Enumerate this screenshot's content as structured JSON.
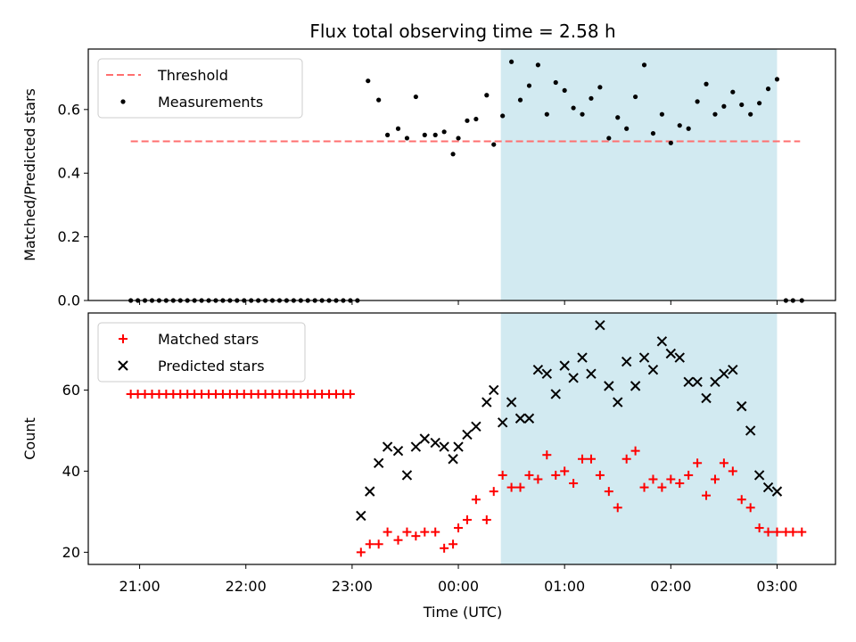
{
  "figure": {
    "title": "Flux total observing time = 2.58 h",
    "xlabel": "Time (UTC)",
    "x_tick_labels": [
      "21:00",
      "22:00",
      "23:00",
      "00:00",
      "01:00",
      "02:00",
      "03:00"
    ],
    "shaded_span": [
      "00:24",
      "03:00"
    ],
    "shade_color": "#add8e6",
    "xlim": [
      "20:31",
      "03:33"
    ]
  },
  "chart_data": [
    {
      "type": "scatter",
      "ylabel": "Matched/Predicted stars",
      "ylim": [
        0,
        0.79
      ],
      "y_ticks": [
        "0.0",
        "0.2",
        "0.4",
        "0.6"
      ],
      "legend_position": "top-left",
      "series": [
        {
          "name": "Threshold",
          "style": "dashed-line",
          "color": "#ff6f6f",
          "x": [
            "20:55",
            "03:13"
          ],
          "y": [
            0.5,
            0.5
          ]
        },
        {
          "name": "Measurements",
          "style": "dot",
          "color": "#000000",
          "x": [
            "20:55",
            "20:59",
            "21:03",
            "21:07",
            "21:11",
            "21:15",
            "21:19",
            "21:23",
            "21:27",
            "21:31",
            "21:35",
            "21:39",
            "21:43",
            "21:47",
            "21:51",
            "21:55",
            "21:59",
            "22:03",
            "22:07",
            "22:11",
            "22:15",
            "22:19",
            "22:23",
            "22:27",
            "22:31",
            "22:35",
            "22:39",
            "22:43",
            "22:47",
            "22:51",
            "22:55",
            "22:59",
            "23:03",
            "23:09",
            "23:15",
            "23:20",
            "23:26",
            "23:31",
            "23:36",
            "23:41",
            "23:47",
            "23:52",
            "23:57",
            "00:00",
            "00:05",
            "00:10",
            "00:16",
            "00:20",
            "00:25",
            "00:30",
            "00:35",
            "00:40",
            "00:45",
            "00:50",
            "00:55",
            "01:00",
            "01:05",
            "01:10",
            "01:15",
            "01:20",
            "01:25",
            "01:30",
            "01:35",
            "01:40",
            "01:45",
            "01:50",
            "01:55",
            "02:00",
            "02:05",
            "02:10",
            "02:15",
            "02:20",
            "02:25",
            "02:30",
            "02:35",
            "02:40",
            "02:45",
            "02:50",
            "02:55",
            "03:00",
            "03:05",
            "03:09",
            "03:14"
          ],
          "y": [
            0,
            0,
            0,
            0,
            0,
            0,
            0,
            0,
            0,
            0,
            0,
            0,
            0,
            0,
            0,
            0,
            0,
            0,
            0,
            0,
            0,
            0,
            0,
            0,
            0,
            0,
            0,
            0,
            0,
            0,
            0,
            0,
            0,
            0.69,
            0.63,
            0.52,
            0.54,
            0.51,
            0.64,
            0.52,
            0.52,
            0.53,
            0.46,
            0.51,
            0.565,
            0.57,
            0.645,
            0.49,
            0.58,
            0.75,
            0.63,
            0.675,
            0.74,
            0.585,
            0.685,
            0.66,
            0.605,
            0.585,
            0.635,
            0.67,
            0.51,
            0.575,
            0.54,
            0.64,
            0.74,
            0.525,
            0.585,
            0.495,
            0.55,
            0.54,
            0.625,
            0.68,
            0.585,
            0.61,
            0.655,
            0.615,
            0.585,
            0.62,
            0.665,
            0.695,
            0,
            0,
            0
          ]
        }
      ]
    },
    {
      "type": "scatter",
      "ylabel": "Count",
      "ylim": [
        17,
        79
      ],
      "y_ticks": [
        "20",
        "40",
        "60"
      ],
      "legend_position": "top-left",
      "series": [
        {
          "name": "Matched stars",
          "marker": "plus",
          "color": "#ff0000",
          "x": [
            "20:55",
            "20:59",
            "21:03",
            "21:07",
            "21:11",
            "21:15",
            "21:19",
            "21:23",
            "21:27",
            "21:31",
            "21:35",
            "21:39",
            "21:43",
            "21:47",
            "21:51",
            "21:55",
            "21:59",
            "22:03",
            "22:07",
            "22:11",
            "22:15",
            "22:19",
            "22:23",
            "22:27",
            "22:31",
            "22:35",
            "22:39",
            "22:43",
            "22:47",
            "22:51",
            "22:55",
            "22:59",
            "23:05",
            "23:10",
            "23:15",
            "23:20",
            "23:26",
            "23:31",
            "23:36",
            "23:41",
            "23:47",
            "23:52",
            "23:57",
            "00:00",
            "00:05",
            "00:10",
            "00:16",
            "00:20",
            "00:25",
            "00:30",
            "00:35",
            "00:40",
            "00:45",
            "00:50",
            "00:55",
            "01:00",
            "01:05",
            "01:10",
            "01:15",
            "01:20",
            "01:25",
            "01:30",
            "01:35",
            "01:40",
            "01:45",
            "01:50",
            "01:55",
            "02:00",
            "02:05",
            "02:10",
            "02:15",
            "02:20",
            "02:25",
            "02:30",
            "02:35",
            "02:40",
            "02:45",
            "02:50",
            "02:55",
            "03:00",
            "03:05",
            "03:09",
            "03:14"
          ],
          "y": [
            59,
            59,
            59,
            59,
            59,
            59,
            59,
            59,
            59,
            59,
            59,
            59,
            59,
            59,
            59,
            59,
            59,
            59,
            59,
            59,
            59,
            59,
            59,
            59,
            59,
            59,
            59,
            59,
            59,
            59,
            59,
            59,
            20,
            22,
            22,
            25,
            23,
            25,
            24,
            25,
            25,
            21,
            22,
            26,
            28,
            33,
            28,
            35,
            39,
            36,
            36,
            39,
            38,
            44,
            39,
            40,
            37,
            43,
            43,
            39,
            35,
            31,
            43,
            45,
            36,
            38,
            36,
            38,
            37,
            39,
            42,
            34,
            38,
            42,
            40,
            33,
            31,
            26,
            25,
            25,
            25,
            25,
            25
          ]
        },
        {
          "name": "Predicted stars",
          "marker": "x",
          "color": "#000000",
          "x": [
            "23:05",
            "23:10",
            "23:15",
            "23:20",
            "23:26",
            "23:31",
            "23:36",
            "23:41",
            "23:47",
            "23:52",
            "23:57",
            "00:00",
            "00:05",
            "00:10",
            "00:16",
            "00:20",
            "00:25",
            "00:30",
            "00:35",
            "00:40",
            "00:45",
            "00:50",
            "00:55",
            "01:00",
            "01:05",
            "01:10",
            "01:15",
            "01:20",
            "01:25",
            "01:30",
            "01:35",
            "01:40",
            "01:45",
            "01:50",
            "01:55",
            "02:00",
            "02:05",
            "02:10",
            "02:15",
            "02:20",
            "02:25",
            "02:30",
            "02:35",
            "02:40",
            "02:45",
            "02:50",
            "02:55",
            "03:00"
          ],
          "y": [
            29,
            35,
            42,
            46,
            45,
            39,
            46,
            48,
            47,
            46,
            43,
            46,
            49,
            51,
            57,
            60,
            52,
            57,
            53,
            53,
            65,
            64,
            59,
            66,
            63,
            68,
            64,
            76,
            61,
            57,
            67,
            61,
            68,
            65,
            72,
            69,
            68,
            62,
            62,
            58,
            62,
            64,
            65,
            56,
            50,
            39,
            36,
            35
          ]
        }
      ]
    }
  ]
}
